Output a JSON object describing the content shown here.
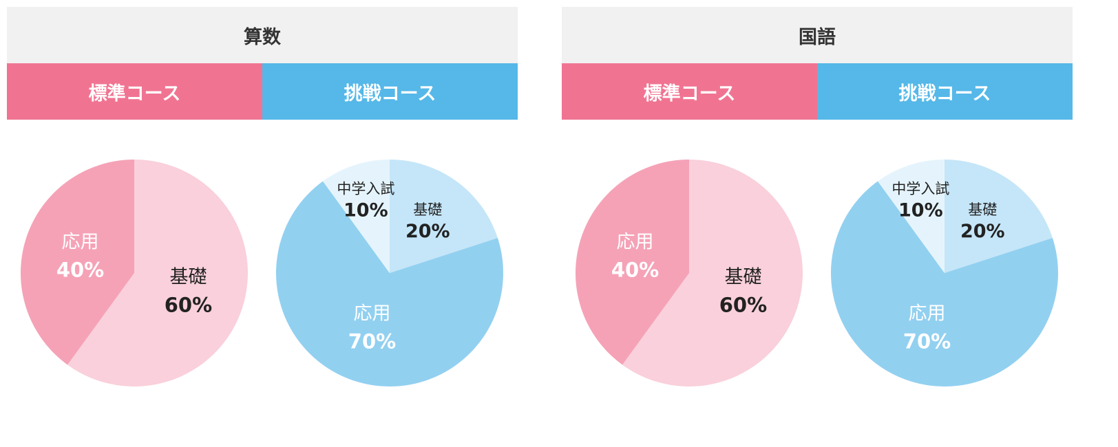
{
  "panels": [
    {
      "subject": "算数",
      "courses": [
        {
          "label": "標準コース",
          "color": "#f07492"
        },
        {
          "label": "挑戦コース",
          "color": "#55b8e8"
        }
      ]
    },
    {
      "subject": "国語",
      "courses": [
        {
          "label": "標準コース",
          "color": "#f07492"
        },
        {
          "label": "挑戦コース",
          "color": "#55b8e8"
        }
      ]
    }
  ],
  "chart_data": [
    {
      "type": "pie",
      "slices": [
        {
          "label": "基礎",
          "value": 60,
          "value_label": "60%",
          "color": "#f9d0db",
          "text_color": "#222222"
        },
        {
          "label": "応用",
          "value": 40,
          "value_label": "40%",
          "color": "#f5a2b7",
          "text_color": "#ffffff"
        }
      ]
    },
    {
      "type": "pie",
      "slices": [
        {
          "label": "基礎",
          "value": 20,
          "value_label": "20%",
          "color": "#c5e6f8",
          "text_color": "#222222"
        },
        {
          "label": "応用",
          "value": 70,
          "value_label": "70%",
          "color": "#92d0f0",
          "text_color": "#ffffff"
        },
        {
          "label": "中学入試",
          "value": 10,
          "value_label": "10%",
          "color": "#e5f4fc",
          "text_color": "#222222"
        }
      ]
    },
    {
      "type": "pie",
      "slices": [
        {
          "label": "基礎",
          "value": 60,
          "value_label": "60%",
          "color": "#f9d0db",
          "text_color": "#222222"
        },
        {
          "label": "応用",
          "value": 40,
          "value_label": "40%",
          "color": "#f5a2b7",
          "text_color": "#ffffff"
        }
      ]
    },
    {
      "type": "pie",
      "slices": [
        {
          "label": "基礎",
          "value": 20,
          "value_label": "20%",
          "color": "#c5e6f8",
          "text_color": "#222222"
        },
        {
          "label": "応用",
          "value": 70,
          "value_label": "70%",
          "color": "#92d0f0",
          "text_color": "#ffffff"
        },
        {
          "label": "中学入試",
          "value": 10,
          "value_label": "10%",
          "color": "#e5f4fc",
          "text_color": "#222222"
        }
      ]
    }
  ]
}
